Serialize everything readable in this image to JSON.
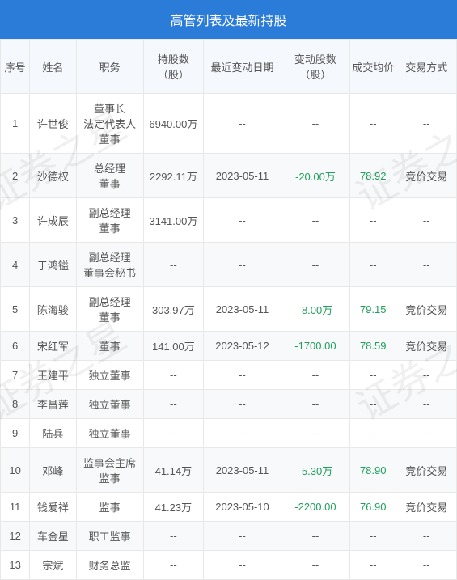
{
  "title": "高管列表及最新持股",
  "columns": [
    "序号",
    "姓名",
    "职务",
    "持股数（股）",
    "最近变动日期",
    "变动股数（股）",
    "成交均价",
    "交易方式"
  ],
  "rows": [
    {
      "idx": "1",
      "name": "许世俊",
      "pos": "董事长\n法定代表人\n董事",
      "shares": "6940.00万",
      "date": "--",
      "change": "--",
      "chg_green": false,
      "price": "--",
      "price_green": false,
      "type": "--"
    },
    {
      "idx": "2",
      "name": "沙德权",
      "pos": "总经理\n董事",
      "shares": "2292.11万",
      "date": "2023-05-11",
      "change": "-20.00万",
      "chg_green": true,
      "price": "78.92",
      "price_green": true,
      "type": "竞价交易"
    },
    {
      "idx": "3",
      "name": "许成辰",
      "pos": "副总经理\n董事",
      "shares": "3141.00万",
      "date": "--",
      "change": "--",
      "chg_green": false,
      "price": "--",
      "price_green": false,
      "type": "--"
    },
    {
      "idx": "4",
      "name": "于鸿镒",
      "pos": "副总经理\n董事会秘书",
      "shares": "--",
      "date": "--",
      "change": "--",
      "chg_green": false,
      "price": "--",
      "price_green": false,
      "type": "--"
    },
    {
      "idx": "5",
      "name": "陈海骏",
      "pos": "副总经理\n董事",
      "shares": "303.97万",
      "date": "2023-05-11",
      "change": "-8.00万",
      "chg_green": true,
      "price": "79.15",
      "price_green": true,
      "type": "竞价交易"
    },
    {
      "idx": "6",
      "name": "宋红军",
      "pos": "董事",
      "shares": "141.00万",
      "date": "2023-05-12",
      "change": "-1700.00",
      "chg_green": true,
      "price": "78.59",
      "price_green": true,
      "type": "竞价交易"
    },
    {
      "idx": "7",
      "name": "王建平",
      "pos": "独立董事",
      "shares": "--",
      "date": "--",
      "change": "--",
      "chg_green": false,
      "price": "--",
      "price_green": false,
      "type": "--"
    },
    {
      "idx": "8",
      "name": "李昌莲",
      "pos": "独立董事",
      "shares": "--",
      "date": "--",
      "change": "--",
      "chg_green": false,
      "price": "--",
      "price_green": false,
      "type": "--"
    },
    {
      "idx": "9",
      "name": "陆兵",
      "pos": "独立董事",
      "shares": "--",
      "date": "--",
      "change": "--",
      "chg_green": false,
      "price": "--",
      "price_green": false,
      "type": "--"
    },
    {
      "idx": "10",
      "name": "邓峰",
      "pos": "监事会主席\n监事",
      "shares": "41.14万",
      "date": "2023-05-11",
      "change": "-5.30万",
      "chg_green": true,
      "price": "78.90",
      "price_green": true,
      "type": "竞价交易"
    },
    {
      "idx": "11",
      "name": "钱爱祥",
      "pos": "监事",
      "shares": "41.23万",
      "date": "2023-05-10",
      "change": "-2200.00",
      "chg_green": true,
      "price": "76.90",
      "price_green": true,
      "type": "竞价交易"
    },
    {
      "idx": "12",
      "name": "车金星",
      "pos": "职工监事",
      "shares": "--",
      "date": "--",
      "change": "--",
      "chg_green": false,
      "price": "--",
      "price_green": false,
      "type": "--"
    },
    {
      "idx": "13",
      "name": "宗斌",
      "pos": "财务总监",
      "shares": "--",
      "date": "--",
      "change": "--",
      "chg_green": false,
      "price": "--",
      "price_green": false,
      "type": "--"
    }
  ],
  "watermark": "证券之星",
  "colors": {
    "header_bg": "#2b7cd9",
    "th_bg": "#f5f8fc",
    "even_bg": "#f7f9fb",
    "text": "#565656",
    "green": "#21a05c",
    "border": "#e8e8e8"
  }
}
